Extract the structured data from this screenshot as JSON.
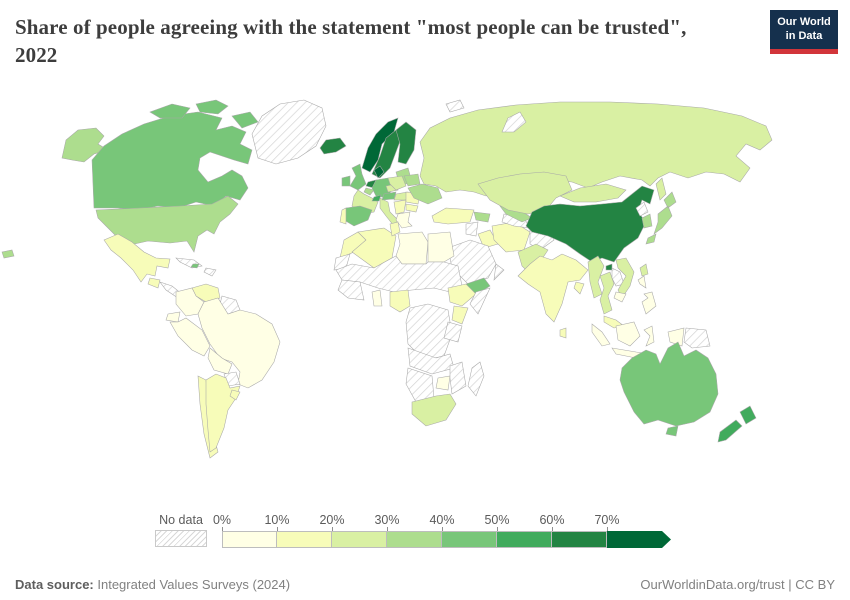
{
  "header": {
    "title": "Share of people agreeing with the statement \"most people can be trusted\", 2022",
    "logo": {
      "line1": "Our World",
      "line2": "in Data",
      "bg_color": "#15304d",
      "accent_color": "#d2353a"
    }
  },
  "legend": {
    "no_data_label": "No data",
    "ticks": [
      "0%",
      "10%",
      "20%",
      "30%",
      "40%",
      "50%",
      "60%",
      "70%"
    ]
  },
  "footer": {
    "source_label": "Data source:",
    "source_value": " Integrated Values Surveys (2024)",
    "attribution": "OurWorldinData.org/trust | CC BY"
  },
  "chart_data": {
    "type": "choropleth",
    "title": "Share of people agreeing with the statement \"most people can be trusted\"",
    "year": "2022",
    "unit": "% of people agreeing",
    "legend_position": "bottom",
    "color_scale": {
      "bins": [
        {
          "range": "0-10%",
          "color": "#ffffe5"
        },
        {
          "range": "10-20%",
          "color": "#f7fcb9"
        },
        {
          "range": "20-30%",
          "color": "#d9f0a3"
        },
        {
          "range": "30-40%",
          "color": "#addd8e"
        },
        {
          "range": "40-50%",
          "color": "#78c679"
        },
        {
          "range": "50-60%",
          "color": "#41ab5d"
        },
        {
          "range": "60-70%",
          "color": "#238443"
        },
        {
          "range": "70%+",
          "color": "#006837"
        }
      ],
      "no_data": {
        "label": "No data",
        "pattern": "diagonal-hatch"
      }
    },
    "regions": [
      {
        "id": "usa-alaska",
        "name": "United States",
        "bin": "30-40%"
      },
      {
        "id": "canada",
        "name": "Canada",
        "bin": "40-50%"
      },
      {
        "id": "canada-arctic-1",
        "name": "Canada",
        "bin": "40-50%"
      },
      {
        "id": "canada-arctic-2",
        "name": "Canada",
        "bin": "40-50%"
      },
      {
        "id": "canada-arctic-3",
        "name": "Canada",
        "bin": "40-50%"
      },
      {
        "id": "greenland",
        "name": "Greenland",
        "bin": "no-data"
      },
      {
        "id": "usa",
        "name": "United States",
        "bin": "30-40%"
      },
      {
        "id": "hawaii",
        "name": "United States",
        "bin": "30-40%"
      },
      {
        "id": "mexico",
        "name": "Mexico",
        "bin": "10-20%"
      },
      {
        "id": "guatemala",
        "name": "Guatemala",
        "bin": "10-20%"
      },
      {
        "id": "central-america",
        "name": "Central America",
        "bin": "no-data"
      },
      {
        "id": "cuba",
        "name": "Cuba",
        "bin": "no-data"
      },
      {
        "id": "hispaniola",
        "name": "Hispaniola",
        "bin": "no-data"
      },
      {
        "id": "jamaica",
        "name": "Jamaica",
        "bin": "40-50%"
      },
      {
        "id": "venezuela",
        "name": "Venezuela",
        "bin": "10-20%"
      },
      {
        "id": "colombia",
        "name": "Colombia",
        "bin": "0-10%"
      },
      {
        "id": "guyanas",
        "name": "Guyana and Suriname",
        "bin": "no-data"
      },
      {
        "id": "ecuador",
        "name": "Ecuador",
        "bin": "0-10%"
      },
      {
        "id": "peru",
        "name": "Peru",
        "bin": "0-10%"
      },
      {
        "id": "brazil",
        "name": "Brazil",
        "bin": "0-10%"
      },
      {
        "id": "bolivia",
        "name": "Bolivia",
        "bin": "0-10%"
      },
      {
        "id": "paraguay",
        "name": "Paraguay",
        "bin": "no-data"
      },
      {
        "id": "chile",
        "name": "Chile",
        "bin": "10-20%"
      },
      {
        "id": "argentina",
        "name": "Argentina",
        "bin": "10-20%"
      },
      {
        "id": "uruguay",
        "name": "Uruguay",
        "bin": "10-20%"
      },
      {
        "id": "iceland",
        "name": "Iceland",
        "bin": "60-70%"
      },
      {
        "id": "norway",
        "name": "Norway",
        "bin": "70%+"
      },
      {
        "id": "sweden",
        "name": "Sweden",
        "bin": "60-70%"
      },
      {
        "id": "finland",
        "name": "Finland",
        "bin": "60-70%"
      },
      {
        "id": "denmark",
        "name": "Denmark",
        "bin": "70%+"
      },
      {
        "id": "baltics",
        "name": "Baltic states",
        "bin": "30-40%"
      },
      {
        "id": "uk",
        "name": "United Kingdom",
        "bin": "40-50%"
      },
      {
        "id": "ireland",
        "name": "Ireland",
        "bin": "40-50%"
      },
      {
        "id": "netherlands",
        "name": "Netherlands",
        "bin": "60-70%"
      },
      {
        "id": "belgium",
        "name": "Belgium",
        "bin": "30-40%"
      },
      {
        "id": "germany",
        "name": "Germany",
        "bin": "40-50%"
      },
      {
        "id": "france",
        "name": "France",
        "bin": "20-30%"
      },
      {
        "id": "spain",
        "name": "Spain",
        "bin": "40-50%"
      },
      {
        "id": "portugal",
        "name": "Portugal",
        "bin": "10-20%"
      },
      {
        "id": "italy",
        "name": "Italy",
        "bin": "20-30%"
      },
      {
        "id": "switzerland",
        "name": "Switzerland",
        "bin": "50-60%"
      },
      {
        "id": "austria",
        "name": "Austria",
        "bin": "40-50%"
      },
      {
        "id": "czechia",
        "name": "Czechia",
        "bin": "20-30%"
      },
      {
        "id": "poland",
        "name": "Poland",
        "bin": "20-30%"
      },
      {
        "id": "hungary",
        "name": "Hungary",
        "bin": "20-30%"
      },
      {
        "id": "balkans",
        "name": "Western Balkans",
        "bin": "10-20%"
      },
      {
        "id": "romania",
        "name": "Romania",
        "bin": "10-20%"
      },
      {
        "id": "bulgaria",
        "name": "Bulgaria",
        "bin": "10-20%"
      },
      {
        "id": "greece",
        "name": "Greece",
        "bin": "0-10%"
      },
      {
        "id": "belarus",
        "name": "Belarus",
        "bin": "30-40%"
      },
      {
        "id": "ukraine",
        "name": "Ukraine",
        "bin": "30-40%"
      },
      {
        "id": "russia",
        "name": "Russia",
        "bin": "20-30%"
      },
      {
        "id": "sakhalin",
        "name": "Russia",
        "bin": "20-30%"
      },
      {
        "id": "svalbard",
        "name": "Svalbard",
        "bin": "no-data"
      },
      {
        "id": "novaya-zemlya",
        "name": "Arctic islands",
        "bin": "no-data"
      },
      {
        "id": "turkey",
        "name": "Turkey",
        "bin": "10-20%"
      },
      {
        "id": "caucasus",
        "name": "Caucasus states",
        "bin": "30-40%"
      },
      {
        "id": "syria",
        "name": "Syria",
        "bin": "no-data"
      },
      {
        "id": "iraq",
        "name": "Iraq",
        "bin": "10-20%"
      },
      {
        "id": "iran",
        "name": "Iran",
        "bin": "10-20%"
      },
      {
        "id": "saudi",
        "name": "Saudi Arabia",
        "bin": "no-data"
      },
      {
        "id": "yemen",
        "name": "Yemen",
        "bin": "40-50%"
      },
      {
        "id": "oman",
        "name": "Oman",
        "bin": "no-data"
      },
      {
        "id": "afghanistan",
        "name": "Afghanistan",
        "bin": "no-data"
      },
      {
        "id": "turkmenistan",
        "name": "Turkmenistan",
        "bin": "no-data"
      },
      {
        "id": "uzbekistan",
        "name": "Uzbekistan",
        "bin": "30-40%"
      },
      {
        "id": "kyrgyzstan",
        "name": "Kyrgyzstan",
        "bin": "20-30%"
      },
      {
        "id": "kazakhstan",
        "name": "Kazakhstan",
        "bin": "20-30%"
      },
      {
        "id": "pakistan",
        "name": "Pakistan",
        "bin": "20-30%"
      },
      {
        "id": "india",
        "name": "India",
        "bin": "10-20%"
      },
      {
        "id": "bangladesh",
        "name": "Bangladesh",
        "bin": "10-20%"
      },
      {
        "id": "srilanka",
        "name": "Sri Lanka",
        "bin": "10-20%"
      },
      {
        "id": "china",
        "name": "China",
        "bin": "60-70%"
      },
      {
        "id": "hainan",
        "name": "China",
        "bin": "60-70%"
      },
      {
        "id": "mongolia",
        "name": "Mongolia",
        "bin": "20-30%"
      },
      {
        "id": "nkorea",
        "name": "North Korea",
        "bin": "no-data"
      },
      {
        "id": "skorea",
        "name": "South Korea",
        "bin": "30-40%"
      },
      {
        "id": "japan",
        "name": "Japan",
        "bin": "30-40%"
      },
      {
        "id": "taiwan",
        "name": "Taiwan",
        "bin": "20-30%"
      },
      {
        "id": "myanmar",
        "name": "Myanmar",
        "bin": "20-30%"
      },
      {
        "id": "thailand",
        "name": "Thailand",
        "bin": "20-30%"
      },
      {
        "id": "laos",
        "name": "Laos",
        "bin": "no-data"
      },
      {
        "id": "vietnam",
        "name": "Vietnam",
        "bin": "20-30%"
      },
      {
        "id": "cambodia",
        "name": "Cambodia",
        "bin": "0-10%"
      },
      {
        "id": "malaysia",
        "name": "Malaysia",
        "bin": "10-20%"
      },
      {
        "id": "indonesia",
        "name": "Indonesia",
        "bin": "0-10%"
      },
      {
        "id": "philippines",
        "name": "Philippines",
        "bin": "0-10%"
      },
      {
        "id": "png",
        "name": "Papua New Guinea",
        "bin": "no-data"
      },
      {
        "id": "morocco",
        "name": "Morocco",
        "bin": "10-20%"
      },
      {
        "id": "wsahara",
        "name": "Western Sahara",
        "bin": "no-data"
      },
      {
        "id": "algeria",
        "name": "Algeria",
        "bin": "10-20%"
      },
      {
        "id": "tunisia",
        "name": "Tunisia",
        "bin": "10-20%"
      },
      {
        "id": "libya",
        "name": "Libya",
        "bin": "0-10%"
      },
      {
        "id": "egypt",
        "name": "Egypt",
        "bin": "0-10%"
      },
      {
        "id": "sahel",
        "name": "Sahel region",
        "bin": "no-data"
      },
      {
        "id": "westafrica",
        "name": "West Africa",
        "bin": "no-data"
      },
      {
        "id": "ghana",
        "name": "Ghana",
        "bin": "0-10%"
      },
      {
        "id": "nigeria",
        "name": "Nigeria",
        "bin": "10-20%"
      },
      {
        "id": "ethiopia",
        "name": "Ethiopia",
        "bin": "10-20%"
      },
      {
        "id": "somalia",
        "name": "Somalia",
        "bin": "no-data"
      },
      {
        "id": "kenya",
        "name": "Kenya",
        "bin": "10-20%"
      },
      {
        "id": "drc",
        "name": "Central Africa",
        "bin": "no-data"
      },
      {
        "id": "tanzania",
        "name": "Tanzania",
        "bin": "no-data"
      },
      {
        "id": "angola",
        "name": "Angola and Zambia",
        "bin": "no-data"
      },
      {
        "id": "zimbabwe",
        "name": "Zimbabwe",
        "bin": "0-10%"
      },
      {
        "id": "mozambique",
        "name": "Mozambique",
        "bin": "no-data"
      },
      {
        "id": "namibia",
        "name": "Namibia and Botswana",
        "bin": "no-data"
      },
      {
        "id": "southafrica",
        "name": "South Africa",
        "bin": "20-30%"
      },
      {
        "id": "madagascar",
        "name": "Madagascar",
        "bin": "no-data"
      },
      {
        "id": "australia",
        "name": "Australia",
        "bin": "40-50%"
      },
      {
        "id": "tasmania",
        "name": "Australia",
        "bin": "40-50%"
      },
      {
        "id": "nz",
        "name": "New Zealand",
        "bin": "50-60%"
      }
    ]
  }
}
